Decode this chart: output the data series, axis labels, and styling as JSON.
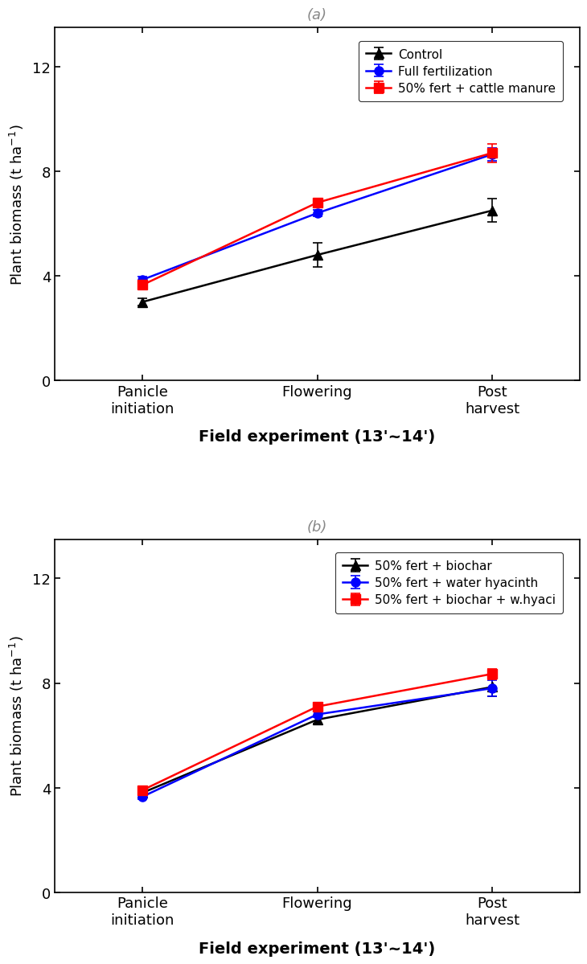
{
  "panel_a": {
    "title": "(a)",
    "x_positions": [
      0,
      1,
      2
    ],
    "x_labels": [
      "Panicle\ninitiation",
      "Flowering",
      "Post\nharvest"
    ],
    "series": [
      {
        "label": "Control",
        "color": "black",
        "marker": "^",
        "markersize": 8,
        "y": [
          3.0,
          4.8,
          6.5
        ],
        "yerr": [
          0.15,
          0.45,
          0.45
        ]
      },
      {
        "label": "Full fertilization",
        "color": "blue",
        "marker": "o",
        "markersize": 8,
        "y": [
          3.85,
          6.4,
          8.65
        ],
        "yerr": [
          0.12,
          0.12,
          0.25
        ]
      },
      {
        "label": "50% fert + cattle manure",
        "color": "red",
        "marker": "s",
        "markersize": 8,
        "y": [
          3.65,
          6.8,
          8.7
        ],
        "yerr": [
          0.1,
          0.12,
          0.35
        ]
      }
    ],
    "ylabel": "Plant biomass (t ha$^{-1}$)",
    "xlabel": "Field experiment (13'~14')",
    "ylim": [
      0,
      13.5
    ],
    "yticks": [
      0,
      4,
      8,
      12
    ]
  },
  "panel_b": {
    "title": "(b)",
    "x_positions": [
      0,
      1,
      2
    ],
    "x_labels": [
      "Panicle\ninitiation",
      "Flowering",
      "Post\nharvest"
    ],
    "series": [
      {
        "label": "50% fert + biochar",
        "color": "black",
        "marker": "^",
        "markersize": 8,
        "y": [
          3.8,
          6.6,
          7.85
        ],
        "yerr": [
          0.1,
          0.15,
          0.35
        ]
      },
      {
        "label": "50% fert + water hyacinth",
        "color": "blue",
        "marker": "o",
        "markersize": 8,
        "y": [
          3.65,
          6.8,
          7.8
        ],
        "yerr": [
          0.1,
          0.12,
          0.3
        ]
      },
      {
        "label": "50% fert + biochar + w.hyaci",
        "color": "red",
        "marker": "s",
        "markersize": 8,
        "y": [
          3.9,
          7.1,
          8.35
        ],
        "yerr": [
          0.1,
          0.1,
          0.2
        ]
      }
    ],
    "ylabel": "Plant biomass (t ha$^{-1}$)",
    "xlabel": "Field experiment (13'~14')",
    "ylim": [
      0,
      13.5
    ],
    "yticks": [
      0,
      4,
      8,
      12
    ]
  }
}
